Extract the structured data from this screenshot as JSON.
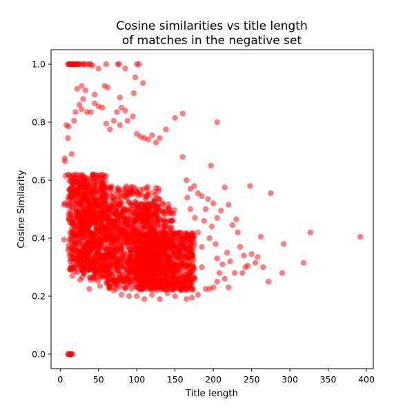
{
  "chart_data": {
    "type": "scatter",
    "title_lines": [
      "Cosine similarities vs title length",
      "of matches in the negative set"
    ],
    "xlabel": "Title length",
    "ylabel": "Cosine Similarity",
    "xlim": [
      -12,
      409
    ],
    "ylim": [
      -0.05,
      1.05
    ],
    "xticks": [
      0,
      50,
      100,
      150,
      200,
      250,
      300,
      350,
      400
    ],
    "yticks": [
      0.0,
      0.2,
      0.4,
      0.6,
      0.8,
      1.0
    ],
    "xtick_labels": [
      "0",
      "50",
      "100",
      "150",
      "200",
      "250",
      "300",
      "350",
      "400"
    ],
    "ytick_labels": [
      "0.0",
      "0.2",
      "0.4",
      "0.6",
      "0.8",
      "1.0"
    ],
    "grid": false,
    "legend": "none",
    "marker_color": "#ff0000",
    "marker_opacity": 0.5,
    "dense_regions": [
      {
        "x_min": 10,
        "x_max": 60,
        "y_min": 0.28,
        "y_max": 0.62
      },
      {
        "x_min": 25,
        "x_max": 130,
        "y_min": 0.25,
        "y_max": 0.58
      },
      {
        "x_min": 60,
        "x_max": 150,
        "y_min": 0.22,
        "y_max": 0.52
      },
      {
        "x_min": 100,
        "x_max": 175,
        "y_min": 0.22,
        "y_max": 0.42
      }
    ],
    "points": [
      [
        10,
        1.0
      ],
      [
        11,
        1.0
      ],
      [
        12,
        1.0
      ],
      [
        13,
        1.0
      ],
      [
        14,
        1.0
      ],
      [
        15,
        1.0
      ],
      [
        16,
        1.0
      ],
      [
        17,
        1.0
      ],
      [
        18,
        1.0
      ],
      [
        19,
        1.0
      ],
      [
        20,
        1.0
      ],
      [
        21,
        1.0
      ],
      [
        22,
        1.0
      ],
      [
        23,
        1.0
      ],
      [
        24,
        1.0
      ],
      [
        25,
        1.0
      ],
      [
        28,
        1.0
      ],
      [
        30,
        1.0
      ],
      [
        32,
        1.0
      ],
      [
        35,
        1.0
      ],
      [
        38,
        1.0
      ],
      [
        40,
        1.0
      ],
      [
        42,
        0.995
      ],
      [
        60,
        1.0
      ],
      [
        75,
        1.0
      ],
      [
        77,
        1.0
      ],
      [
        100,
        1.0
      ],
      [
        103,
        1.0
      ],
      [
        50,
        0.985
      ],
      [
        85,
        0.985
      ],
      [
        98,
        0.955
      ],
      [
        108,
        0.935
      ],
      [
        22,
        0.915
      ],
      [
        28,
        0.925
      ],
      [
        33,
        0.91
      ],
      [
        58,
        0.925
      ],
      [
        62,
        0.92
      ],
      [
        45,
        0.895
      ],
      [
        78,
        0.885
      ],
      [
        96,
        0.9
      ],
      [
        10,
        0.0
      ],
      [
        11,
        0.0
      ],
      [
        12,
        0.0
      ],
      [
        13,
        0.0
      ],
      [
        14,
        0.0
      ],
      [
        15,
        0.0
      ],
      [
        16,
        0.0
      ],
      [
        5,
        0.395
      ],
      [
        5,
        0.515
      ],
      [
        6,
        0.52
      ],
      [
        6,
        0.665
      ],
      [
        6,
        0.675
      ],
      [
        7,
        0.615
      ],
      [
        8,
        0.79
      ],
      [
        10,
        0.745
      ],
      [
        11,
        0.785
      ],
      [
        12,
        0.34
      ],
      [
        13,
        0.32
      ],
      [
        14,
        0.29
      ],
      [
        16,
        0.27
      ],
      [
        15,
        0.69
      ],
      [
        18,
        0.805
      ],
      [
        20,
        0.835
      ],
      [
        25,
        0.86
      ],
      [
        28,
        0.845
      ],
      [
        30,
        0.88
      ],
      [
        35,
        0.835
      ],
      [
        40,
        0.835
      ],
      [
        45,
        0.865
      ],
      [
        50,
        0.855
      ],
      [
        55,
        0.85
      ],
      [
        60,
        0.795
      ],
      [
        65,
        0.775
      ],
      [
        70,
        0.805
      ],
      [
        74,
        0.835
      ],
      [
        78,
        0.79
      ],
      [
        80,
        0.85
      ],
      [
        85,
        0.84
      ],
      [
        88,
        0.805
      ],
      [
        95,
        0.82
      ],
      [
        100,
        0.76
      ],
      [
        105,
        0.75
      ],
      [
        110,
        0.745
      ],
      [
        115,
        0.74
      ],
      [
        120,
        0.755
      ],
      [
        125,
        0.73
      ],
      [
        130,
        0.745
      ],
      [
        138,
        0.775
      ],
      [
        150,
        0.815
      ],
      [
        160,
        0.83
      ],
      [
        205,
        0.8
      ],
      [
        38,
        0.225
      ],
      [
        52,
        0.235
      ],
      [
        60,
        0.245
      ],
      [
        70,
        0.22
      ],
      [
        80,
        0.205
      ],
      [
        90,
        0.2
      ],
      [
        100,
        0.2
      ],
      [
        110,
        0.19
      ],
      [
        120,
        0.205
      ],
      [
        130,
        0.19
      ],
      [
        140,
        0.21
      ],
      [
        150,
        0.2
      ],
      [
        165,
        0.19
      ],
      [
        172,
        0.195
      ],
      [
        180,
        0.205
      ],
      [
        190,
        0.225
      ],
      [
        195,
        0.225
      ],
      [
        160,
        0.68
      ],
      [
        165,
        0.6
      ],
      [
        170,
        0.57
      ],
      [
        175,
        0.58
      ],
      [
        180,
        0.555
      ],
      [
        185,
        0.545
      ],
      [
        190,
        0.5
      ],
      [
        193,
        0.535
      ],
      [
        197,
        0.65
      ],
      [
        200,
        0.52
      ],
      [
        205,
        0.47
      ],
      [
        210,
        0.495
      ],
      [
        215,
        0.575
      ],
      [
        220,
        0.515
      ],
      [
        225,
        0.445
      ],
      [
        230,
        0.465
      ],
      [
        232,
        0.42
      ],
      [
        235,
        0.37
      ],
      [
        240,
        0.34
      ],
      [
        245,
        0.305
      ],
      [
        248,
        0.58
      ],
      [
        250,
        0.345
      ],
      [
        255,
        0.315
      ],
      [
        258,
        0.335
      ],
      [
        262,
        0.405
      ],
      [
        265,
        0.3
      ],
      [
        272,
        0.25
      ],
      [
        275,
        0.555
      ],
      [
        290,
        0.28
      ],
      [
        292,
        0.38
      ],
      [
        318,
        0.315
      ],
      [
        327,
        0.42
      ],
      [
        392,
        0.405
      ],
      [
        200,
        0.23
      ],
      [
        205,
        0.25
      ],
      [
        215,
        0.26
      ],
      [
        220,
        0.23
      ],
      [
        228,
        0.28
      ],
      [
        238,
        0.28
      ],
      [
        242,
        0.3
      ],
      [
        185,
        0.37
      ],
      [
        195,
        0.4
      ],
      [
        205,
        0.33
      ],
      [
        212,
        0.31
      ],
      [
        218,
        0.35
      ],
      [
        222,
        0.32
      ],
      [
        208,
        0.28
      ],
      [
        180,
        0.42
      ],
      [
        176,
        0.47
      ],
      [
        170,
        0.5
      ],
      [
        188,
        0.46
      ],
      [
        198,
        0.44
      ],
      [
        203,
        0.38
      ],
      [
        166,
        0.54
      ],
      [
        160,
        0.25
      ],
      [
        168,
        0.23
      ],
      [
        176,
        0.26
      ],
      [
        185,
        0.3
      ]
    ]
  }
}
